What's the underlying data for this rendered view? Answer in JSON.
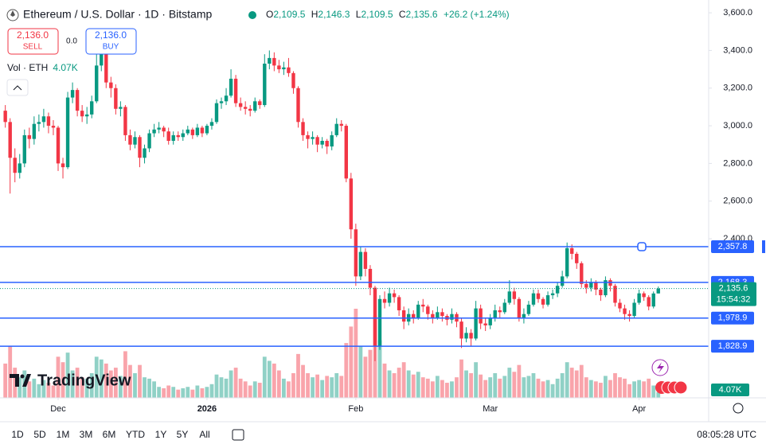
{
  "header": {
    "title": "Ethereum / U.S. Dollar · 1D · Bitstamp",
    "o_label": "O",
    "o_value": "2,109.5",
    "h_label": "H",
    "h_value": "2,146.3",
    "l_label": "L",
    "l_value": "2,109.5",
    "c_label": "C",
    "c_value": "2,135.6",
    "change": "+26.2 (+1.24%)"
  },
  "trade": {
    "sell_price": "2,136.0",
    "sell": "SELL",
    "spread": "0.0",
    "buy_price": "2,136.0",
    "buy": "BUY"
  },
  "volume_legend": {
    "label": "Vol · ETH",
    "value": "4.07K"
  },
  "branding": "TradingView",
  "chart_data": {
    "type": "candlestick",
    "ylim": [
      1555,
      3668
    ],
    "yticks": [
      {
        "value": 3600,
        "label": "3,600.0"
      },
      {
        "value": 3400,
        "label": "3,400.0"
      },
      {
        "value": 3200,
        "label": "3,200.0"
      },
      {
        "value": 3000,
        "label": "3,000.0"
      },
      {
        "value": 2800,
        "label": "2,800.0"
      },
      {
        "value": 2600,
        "label": "2,600.0"
      },
      {
        "value": 2400,
        "label": "2,400.0"
      }
    ],
    "xticks": [
      {
        "value": 11,
        "label": "Dec"
      },
      {
        "value": 42,
        "label": "2026"
      },
      {
        "value": 73,
        "label": "Feb"
      },
      {
        "value": 101,
        "label": "Mar"
      },
      {
        "value": 132,
        "label": "Apr"
      }
    ],
    "up_color": "#089981",
    "down_color": "#f23645",
    "grid": false,
    "ohlc": [
      [
        3080,
        3110,
        2990,
        3020
      ],
      [
        3020,
        3040,
        2640,
        2830
      ],
      [
        2830,
        2880,
        2700,
        2750
      ],
      [
        2750,
        2850,
        2720,
        2800
      ],
      [
        2800,
        2980,
        2780,
        2950
      ],
      [
        2950,
        2990,
        2880,
        2930
      ],
      [
        2930,
        3050,
        2900,
        3010
      ],
      [
        3010,
        3060,
        2970,
        3020
      ],
      [
        3020,
        3090,
        2990,
        3050
      ],
      [
        3050,
        3070,
        2960,
        3000
      ],
      [
        3000,
        3030,
        2950,
        2990
      ],
      [
        2990,
        3000,
        2760,
        2800
      ],
      [
        2800,
        2830,
        2720,
        2780
      ],
      [
        2780,
        3180,
        2770,
        3150
      ],
      [
        3150,
        3230,
        3120,
        3190
      ],
      [
        3190,
        3200,
        3050,
        3080
      ],
      [
        3080,
        3110,
        3020,
        3050
      ],
      [
        3050,
        3100,
        3010,
        3060
      ],
      [
        3060,
        3160,
        3040,
        3130
      ],
      [
        3130,
        3400,
        3120,
        3320
      ],
      [
        3320,
        3420,
        3290,
        3380
      ],
      [
        3380,
        3390,
        3200,
        3230
      ],
      [
        3230,
        3260,
        3150,
        3200
      ],
      [
        3200,
        3220,
        3060,
        3090
      ],
      [
        3090,
        3130,
        3050,
        3100
      ],
      [
        3100,
        3110,
        2920,
        2950
      ],
      [
        2950,
        2980,
        2870,
        2900
      ],
      [
        2900,
        2970,
        2880,
        2940
      ],
      [
        2940,
        2950,
        2780,
        2830
      ],
      [
        2830,
        2900,
        2800,
        2880
      ],
      [
        2880,
        2980,
        2860,
        2960
      ],
      [
        2960,
        3010,
        2940,
        2980
      ],
      [
        2980,
        3020,
        2960,
        2990
      ],
      [
        2990,
        3000,
        2940,
        2970
      ],
      [
        2970,
        2990,
        2900,
        2920
      ],
      [
        2920,
        2970,
        2900,
        2950
      ],
      [
        2950,
        2970,
        2920,
        2940
      ],
      [
        2940,
        2980,
        2920,
        2960
      ],
      [
        2960,
        3000,
        2950,
        2980
      ],
      [
        2980,
        2990,
        2930,
        2950
      ],
      [
        2950,
        3010,
        2940,
        2990
      ],
      [
        2990,
        3000,
        2940,
        2960
      ],
      [
        2960,
        3010,
        2950,
        3000
      ],
      [
        3000,
        3040,
        2980,
        3020
      ],
      [
        3020,
        3140,
        3010,
        3120
      ],
      [
        3120,
        3150,
        3090,
        3130
      ],
      [
        3130,
        3200,
        3110,
        3160
      ],
      [
        3160,
        3300,
        3150,
        3250
      ],
      [
        3250,
        3270,
        3100,
        3120
      ],
      [
        3120,
        3150,
        3080,
        3100
      ],
      [
        3100,
        3130,
        3060,
        3090
      ],
      [
        3090,
        3110,
        3050,
        3080
      ],
      [
        3080,
        3150,
        3070,
        3130
      ],
      [
        3130,
        3140,
        3090,
        3110
      ],
      [
        3110,
        3380,
        3100,
        3330
      ],
      [
        3330,
        3400,
        3300,
        3360
      ],
      [
        3360,
        3390,
        3290,
        3320
      ],
      [
        3320,
        3350,
        3280,
        3300
      ],
      [
        3300,
        3340,
        3270,
        3310
      ],
      [
        3310,
        3360,
        3260,
        3280
      ],
      [
        3280,
        3290,
        3170,
        3200
      ],
      [
        3200,
        3210,
        2990,
        3020
      ],
      [
        3020,
        3040,
        2920,
        2950
      ],
      [
        2950,
        2970,
        2880,
        2930
      ],
      [
        2930,
        2970,
        2900,
        2940
      ],
      [
        2940,
        2950,
        2860,
        2900
      ],
      [
        2900,
        2940,
        2880,
        2920
      ],
      [
        2920,
        2930,
        2850,
        2890
      ],
      [
        2890,
        2970,
        2870,
        2950
      ],
      [
        2950,
        3040,
        2940,
        3010
      ],
      [
        3010,
        3030,
        2970,
        3000
      ],
      [
        3000,
        3010,
        2700,
        2720
      ],
      [
        2720,
        2750,
        2400,
        2450
      ],
      [
        2450,
        2480,
        2150,
        2200
      ],
      [
        2200,
        2360,
        2180,
        2330
      ],
      [
        2330,
        2350,
        2200,
        2240
      ],
      [
        2240,
        2260,
        2100,
        2140
      ],
      [
        2140,
        2150,
        1750,
        1830
      ],
      [
        1830,
        2100,
        1810,
        2080
      ],
      [
        2080,
        2120,
        2030,
        2060
      ],
      [
        2060,
        2140,
        2040,
        2110
      ],
      [
        2110,
        2130,
        2060,
        2090
      ],
      [
        2090,
        2100,
        1990,
        2020
      ],
      [
        2020,
        2040,
        1920,
        1960
      ],
      [
        1960,
        2030,
        1940,
        2000
      ],
      [
        2000,
        2020,
        1950,
        1980
      ],
      [
        1980,
        2070,
        1970,
        2050
      ],
      [
        2050,
        2080,
        2010,
        2040
      ],
      [
        2040,
        2050,
        1970,
        2000
      ],
      [
        2000,
        2020,
        1950,
        1980
      ],
      [
        1980,
        2040,
        1970,
        2010
      ],
      [
        2010,
        2030,
        1960,
        1990
      ],
      [
        1990,
        2000,
        1940,
        1970
      ],
      [
        1970,
        2030,
        1950,
        2000
      ],
      [
        2000,
        2010,
        1930,
        1960
      ],
      [
        1960,
        1980,
        1820,
        1870
      ],
      [
        1870,
        1930,
        1850,
        1900
      ],
      [
        1900,
        1920,
        1830,
        1870
      ],
      [
        1870,
        2070,
        1860,
        2030
      ],
      [
        2030,
        2050,
        1920,
        1950
      ],
      [
        1950,
        1980,
        1910,
        1940
      ],
      [
        1940,
        2000,
        1920,
        1980
      ],
      [
        1980,
        2050,
        1960,
        2020
      ],
      [
        2020,
        2040,
        1980,
        2010
      ],
      [
        2010,
        2080,
        2000,
        2060
      ],
      [
        2060,
        2180,
        2050,
        2120
      ],
      [
        2120,
        2140,
        2050,
        2080
      ],
      [
        2080,
        2090,
        1960,
        1980
      ],
      [
        1980,
        2030,
        1950,
        2000
      ],
      [
        2000,
        2070,
        1990,
        2050
      ],
      [
        2050,
        2130,
        2040,
        2110
      ],
      [
        2110,
        2130,
        2060,
        2080
      ],
      [
        2080,
        2090,
        2030,
        2050
      ],
      [
        2050,
        2120,
        2040,
        2100
      ],
      [
        2100,
        2130,
        2080,
        2110
      ],
      [
        2110,
        2170,
        2090,
        2150
      ],
      [
        2150,
        2230,
        2140,
        2200
      ],
      [
        2200,
        2380,
        2190,
        2350
      ],
      [
        2350,
        2370,
        2290,
        2320
      ],
      [
        2320,
        2330,
        2240,
        2270
      ],
      [
        2270,
        2280,
        2140,
        2160
      ],
      [
        2160,
        2180,
        2110,
        2140
      ],
      [
        2140,
        2190,
        2120,
        2170
      ],
      [
        2170,
        2180,
        2100,
        2130
      ],
      [
        2130,
        2140,
        2070,
        2100
      ],
      [
        2100,
        2200,
        2090,
        2180
      ],
      [
        2180,
        2190,
        2120,
        2150
      ],
      [
        2150,
        2160,
        2040,
        2060
      ],
      [
        2060,
        2080,
        2010,
        2030
      ],
      [
        2030,
        2050,
        1970,
        2000
      ],
      [
        2000,
        2020,
        1960,
        1990
      ],
      [
        1990,
        2080,
        1980,
        2060
      ],
      [
        2060,
        2130,
        2050,
        2110
      ],
      [
        2110,
        2120,
        2070,
        2090
      ],
      [
        2090,
        2100,
        2020,
        2040
      ],
      [
        2040,
        2120,
        2030,
        2109.4
      ],
      [
        2109.5,
        2146.3,
        2109.5,
        2135.6
      ]
    ],
    "volume": [
      25000,
      38000,
      22000,
      15000,
      20000,
      12000,
      14000,
      10000,
      13000,
      11000,
      9000,
      30000,
      26000,
      33000,
      20000,
      22000,
      15000,
      14000,
      18000,
      30000,
      28000,
      25000,
      20000,
      22000,
      16000,
      34000,
      24000,
      18000,
      24000,
      15000,
      14000,
      12000,
      8000,
      7000,
      9000,
      8000,
      6000,
      7000,
      8000,
      6000,
      9000,
      7000,
      8000,
      10000,
      17000,
      15000,
      14000,
      20000,
      22000,
      14000,
      12000,
      9000,
      12000,
      11000,
      30000,
      27000,
      25000,
      20000,
      14000,
      12000,
      18000,
      32000,
      24000,
      18000,
      15000,
      17000,
      13000,
      16000,
      15000,
      18000,
      16000,
      40000,
      52000,
      65000,
      38000,
      30000,
      35000,
      60000,
      42000,
      25000,
      20000,
      18000,
      22000,
      26000,
      20000,
      17000,
      19000,
      15000,
      14000,
      12000,
      16000,
      13000,
      11000,
      12000,
      15000,
      28000,
      20000,
      18000,
      26000,
      17000,
      13000,
      15000,
      18000,
      14000,
      16000,
      22000,
      19000,
      24000,
      15000,
      16000,
      18000,
      14000,
      12000,
      13000,
      10000,
      14000,
      18000,
      26000,
      22000,
      20000,
      24000,
      15000,
      13000,
      12000,
      11000,
      16000,
      13000,
      18000,
      15000,
      14000,
      10000,
      12000,
      13000,
      12000,
      14000,
      9000,
      4070
    ],
    "levels": [
      {
        "value": 2357.8,
        "label": "2,357.8"
      },
      {
        "value": 2168.3,
        "label": "2,168.3"
      },
      {
        "value": 1978.9,
        "label": "1,978.9"
      },
      {
        "value": 1828.9,
        "label": "1,828.9"
      }
    ],
    "level_color": "#2962ff",
    "last_price": {
      "value": 2135.6,
      "label": "2,135.6"
    },
    "countdown": "15:54:32"
  },
  "toolbar": {
    "ranges": [
      "1D",
      "5D",
      "1M",
      "3M",
      "6M",
      "YTD",
      "1Y",
      "5Y",
      "All"
    ],
    "clock": "08:05:28 UTC"
  }
}
